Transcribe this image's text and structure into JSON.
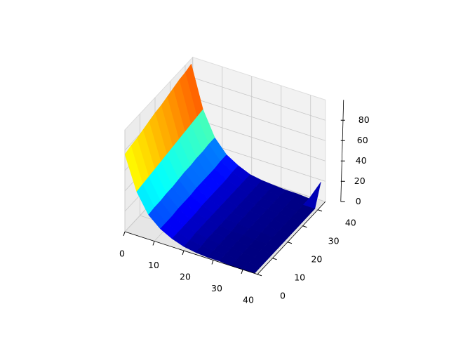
{
  "chart_data": {
    "type": "surface",
    "colormap": "jet",
    "x": [
      0,
      4,
      8,
      12,
      16,
      20,
      24,
      28,
      32,
      36,
      40,
      44
    ],
    "y": [
      0,
      4,
      8,
      12,
      16,
      20,
      24,
      28,
      32,
      36,
      40,
      44
    ],
    "z": [
      [
        76,
        43,
        24,
        14,
        8,
        4,
        2,
        1,
        1,
        0,
        0,
        0
      ],
      [
        78,
        44,
        25,
        14,
        8,
        4,
        2,
        1,
        1,
        0,
        0,
        0
      ],
      [
        79,
        45,
        25,
        14,
        8,
        5,
        3,
        1,
        1,
        0,
        0,
        0
      ],
      [
        81,
        46,
        26,
        15,
        8,
        5,
        3,
        1,
        1,
        0,
        0,
        0
      ],
      [
        83,
        47,
        26,
        15,
        8,
        5,
        3,
        1,
        1,
        0,
        0,
        0
      ],
      [
        85,
        48,
        27,
        15,
        9,
        5,
        3,
        2,
        1,
        1,
        0,
        0
      ],
      [
        86,
        49,
        28,
        16,
        9,
        5,
        3,
        2,
        1,
        1,
        0,
        0
      ],
      [
        88,
        50,
        28,
        16,
        9,
        5,
        3,
        2,
        1,
        1,
        0,
        0
      ],
      [
        90,
        51,
        29,
        16,
        9,
        5,
        3,
        2,
        1,
        1,
        0,
        0
      ],
      [
        92,
        52,
        29,
        16,
        9,
        5,
        3,
        2,
        1,
        1,
        0,
        0
      ],
      [
        93,
        53,
        30,
        17,
        10,
        5,
        3,
        2,
        1,
        1,
        0,
        0
      ],
      [
        95,
        54,
        30,
        17,
        10,
        5,
        3,
        2,
        1,
        1,
        0,
        20
      ]
    ],
    "xlim": [
      0,
      45
    ],
    "ylim": [
      0,
      45
    ],
    "zlim": [
      0,
      100
    ],
    "xticks": [
      0,
      10,
      20,
      30,
      40
    ],
    "yticks": [
      0,
      10,
      20,
      30,
      40
    ],
    "zticks": [
      0,
      20,
      40,
      60,
      80
    ],
    "grid": true
  }
}
